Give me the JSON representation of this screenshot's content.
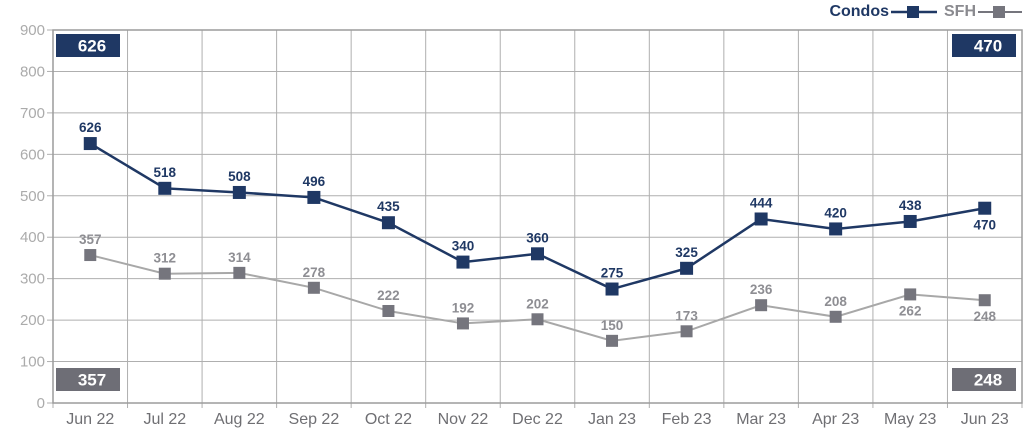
{
  "legend": {
    "items": [
      {
        "label": "Condos",
        "swatch_color": "#1F3864"
      },
      {
        "label": "SFH",
        "swatch_color": "#75757D"
      }
    ]
  },
  "chart_data": {
    "type": "line",
    "title": "",
    "xlabel": "",
    "ylabel": "",
    "categories": [
      "Jun 22",
      "Jul 22",
      "Aug 22",
      "Sep 22",
      "Oct 22",
      "Nov 22",
      "Dec 22",
      "Jan 23",
      "Feb 23",
      "Mar 23",
      "Apr 23",
      "May 23",
      "Jun 23"
    ],
    "series": [
      {
        "name": "Condos",
        "values": [
          626,
          518,
          508,
          496,
          435,
          340,
          360,
          275,
          325,
          444,
          420,
          438,
          470
        ],
        "line_color": "#1F3864",
        "marker_color": "#1F3864",
        "label_color": "#1F3864",
        "line_width": 2.5,
        "marker_size": 13,
        "labels_below_indices": [
          12
        ]
      },
      {
        "name": "SFH",
        "values": [
          357,
          312,
          314,
          278,
          222,
          192,
          202,
          150,
          173,
          236,
          208,
          262,
          248
        ],
        "line_color": "#A8A8A8",
        "marker_color": "#75757D",
        "label_color": "#8E8E93",
        "line_width": 2,
        "marker_size": 12,
        "labels_below_indices": [
          11,
          12
        ]
      }
    ],
    "ylim": [
      0,
      900
    ],
    "ytick_labels": [
      "0",
      "100",
      "200",
      "300",
      "400",
      "500",
      "600",
      "700",
      "800",
      "900"
    ],
    "grid": true,
    "legend_position": "top-right",
    "corner_badges": [
      {
        "position": "top-left",
        "value": "626",
        "bg": "#1F3864",
        "text_color": "#FFFFFF"
      },
      {
        "position": "top-right",
        "value": "470",
        "bg": "#1F3864",
        "text_color": "#FFFFFF"
      },
      {
        "position": "bottom-left",
        "value": "357",
        "bg": "#6E6E76",
        "text_color": "#FFFFFF"
      },
      {
        "position": "bottom-right",
        "value": "248",
        "bg": "#6E6E76",
        "text_color": "#FFFFFF"
      }
    ],
    "axis_colors": {
      "grid": "#AFAFAF",
      "border": "#9C9C9C",
      "ytick_text": "#ABABAB",
      "xtick_text": "#6F6F73"
    }
  }
}
